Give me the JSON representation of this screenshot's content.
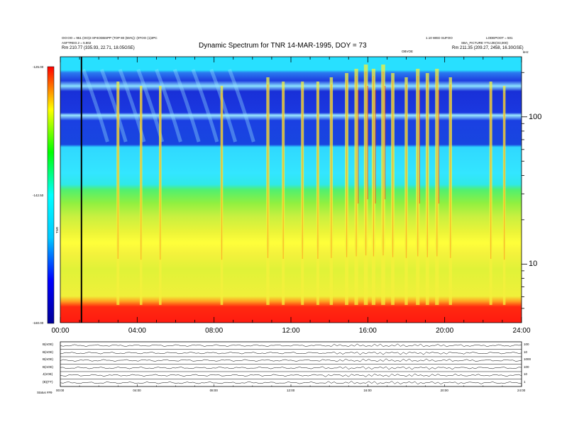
{
  "header": {
    "title": "Dynamic Spectrum for TNR 14-MAR-1995, DOY = 73",
    "left_lines": [
      "OO:OO = 951 (OO)3 SP4ODBSPP (TOP 80 (55%)): (0TOO (1)3PC",
      "ASFTREO.2 = 5.802",
      "Rm  210.77 (335.93, 22.71, 18.05GSE)"
    ],
    "right_lines": [
      "1.10 WED SUFOO",
      "LODEPOOT = 501",
      "SBA_FICTURE  YTU:ZE(O3,000)",
      "Rm  211.35 (209.27, 2458, 16.30GSE)"
    ],
    "right_marker": "OBVOE",
    "corner_note": "kHz"
  },
  "colorbar": {
    "labels": [
      "-125.00",
      "-142.50",
      "-160.00"
    ],
    "unit": "TNR"
  },
  "chart_data": {
    "type": "heatmap",
    "title": "Dynamic Spectrum for TNR 14-MAR-1995, DOY = 73",
    "x_ticks": [
      "00:00",
      "04:00",
      "08:00",
      "12:00",
      "16:00",
      "20:00",
      "24:00"
    ],
    "xlim_hours": [
      0,
      24
    ],
    "y_ticks": [
      "100",
      "10"
    ],
    "y_scale": "log",
    "ylim_khz": [
      4,
      256
    ],
    "colorbar_range": [
      -160.0,
      -125.0
    ],
    "colormap": [
      "#000096",
      "#0000ff",
      "#00c8ff",
      "#00ffff",
      "#00ff00",
      "#ffff00",
      "#ff0000"
    ],
    "marker_line_hour": 1.1,
    "bursts": [
      {
        "hour": 3.0,
        "intensity": 0.5
      },
      {
        "hour": 4.2,
        "intensity": 0.4
      },
      {
        "hour": 5.2,
        "intensity": 0.4
      },
      {
        "hour": 8.4,
        "intensity": 0.4
      },
      {
        "hour": 10.8,
        "intensity": 0.6
      },
      {
        "hour": 11.6,
        "intensity": 0.5
      },
      {
        "hour": 12.6,
        "intensity": 0.5
      },
      {
        "hour": 13.4,
        "intensity": 0.5
      },
      {
        "hour": 14.1,
        "intensity": 0.6
      },
      {
        "hour": 14.9,
        "intensity": 0.7
      },
      {
        "hour": 15.4,
        "intensity": 0.8
      },
      {
        "hour": 15.9,
        "intensity": 0.9
      },
      {
        "hour": 16.3,
        "intensity": 0.8
      },
      {
        "hour": 16.8,
        "intensity": 0.9
      },
      {
        "hour": 17.3,
        "intensity": 0.7
      },
      {
        "hour": 18.0,
        "intensity": 0.6
      },
      {
        "hour": 18.6,
        "intensity": 0.8
      },
      {
        "hour": 19.1,
        "intensity": 0.7
      },
      {
        "hour": 19.6,
        "intensity": 0.8
      },
      {
        "hour": 20.3,
        "intensity": 0.6
      },
      {
        "hour": 22.4,
        "intensity": 0.5
      },
      {
        "hour": 23.1,
        "intensity": 0.4
      }
    ],
    "aux_panels": {
      "left_labels": [
        "B(nOE)",
        "B(nOE)",
        "B(nOE)",
        "B(nOE)",
        "J(nOE)",
        "(B)(TT)"
      ],
      "right_labels": [
        "100",
        "10",
        "1000",
        "100",
        "10",
        "1"
      ],
      "x_ticks": [
        "00:00",
        "04:00",
        "08:00",
        "12:00",
        "16:00",
        "20:00",
        "24:00"
      ],
      "footer_label": "Status  ##9"
    }
  }
}
